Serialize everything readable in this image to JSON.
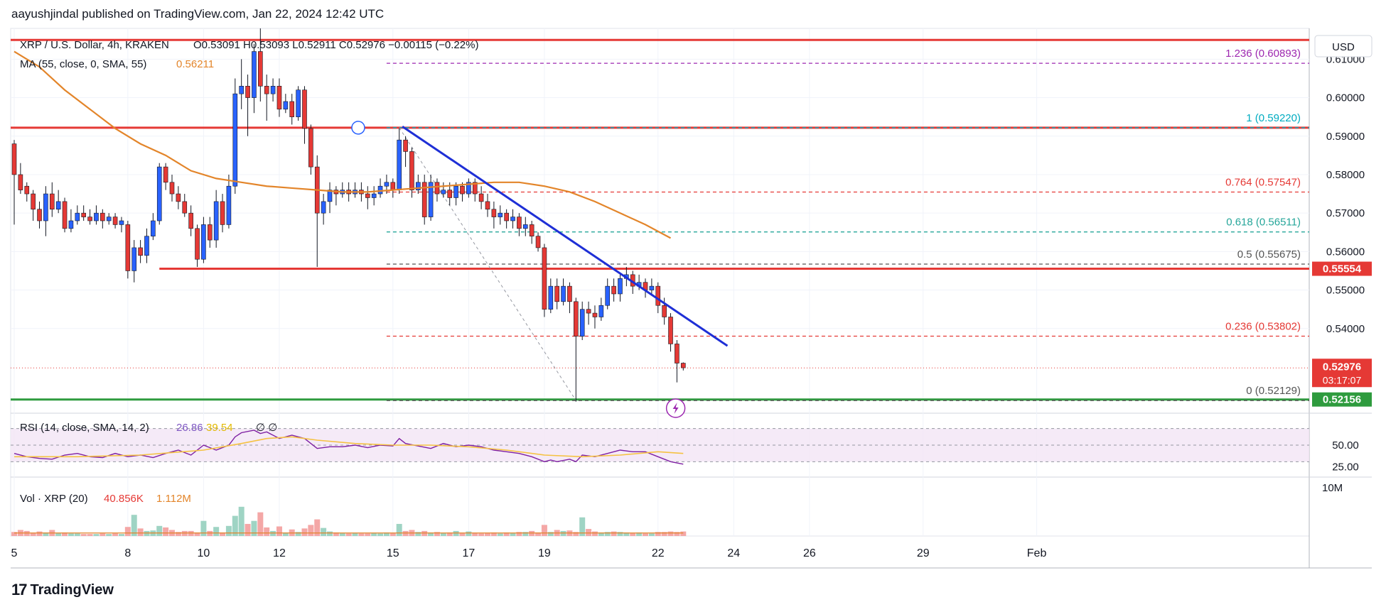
{
  "header": {
    "published_by": "aayushjindal published on TradingView.com, Jan 22, 2024 12:42 UTC"
  },
  "footer": {
    "brand": "TradingView",
    "logo_mark": "17"
  },
  "legend": {
    "symbol": "XRP / U.S. Dollar, 4h, KRAKEN",
    "ohlc": "O0.53091  H0.53093  L0.52911  C0.52976  −0.00115 (−0.22%)",
    "ma_label": "MA (55, close, 0, SMA, 55)",
    "ma_value": "0.56211",
    "rsi_label": "RSI (14, close, SMA, 14, 2)",
    "rsi_value": "26.86",
    "rsi_ma_value": "39.54",
    "rsi_extra": "∅  ∅",
    "vol_label": "Vol · XRP (20)",
    "vol_value": "40.856K",
    "vol_ma_value": "1.112M"
  },
  "chart_data": {
    "type": "candlestick",
    "currency": "USD",
    "price_axis": {
      "ymin": 0.518,
      "ymax": 0.618,
      "ticks": [
        "0.61000",
        "0.60000",
        "0.59000",
        "0.58000",
        "0.57000",
        "0.56000",
        "0.55000",
        "0.54000"
      ]
    },
    "rsi_axis": {
      "ticks": [
        "50.00",
        "25.00"
      ]
    },
    "vol_axis": {
      "ticks": [
        "10M"
      ]
    },
    "x_ticks": [
      {
        "label": "5",
        "x": 0
      },
      {
        "label": "8",
        "x": 18
      },
      {
        "label": "10",
        "x": 30
      },
      {
        "label": "12",
        "x": 42
      },
      {
        "label": "15",
        "x": 60
      },
      {
        "label": "17",
        "x": 72
      },
      {
        "label": "19",
        "x": 84
      },
      {
        "label": "22",
        "x": 102
      },
      {
        "label": "24",
        "x": 114
      },
      {
        "label": "26",
        "x": 126
      },
      {
        "label": "29",
        "x": 144
      },
      {
        "label": "Feb",
        "x": 162
      }
    ],
    "fib_levels": [
      {
        "label": "1.236 (0.60893)",
        "value": 0.60893,
        "color": "#9c27b0"
      },
      {
        "label": "1 (0.59220)",
        "value": 0.5922,
        "color": "#00acc1"
      },
      {
        "label": "0.764 (0.57547)",
        "value": 0.57547,
        "color": "#e53935"
      },
      {
        "label": "0.618 (0.56511)",
        "value": 0.56511,
        "color": "#26a69a"
      },
      {
        "label": "0.5 (0.55675)",
        "value": 0.55675,
        "color": "#555555"
      },
      {
        "label": "0.236 (0.53802)",
        "value": 0.53802,
        "color": "#e53935"
      },
      {
        "label": "0 (0.52129)",
        "value": 0.52129,
        "color": "#555555"
      }
    ],
    "levels": [
      {
        "value": 0.615,
        "color": "#e53935"
      },
      {
        "value": 0.5922,
        "color": "#e53935"
      },
      {
        "value": 0.55554,
        "color": "#e53935",
        "badge": "0.55554"
      },
      {
        "value": 0.52156,
        "color": "#2e9b3e",
        "badge": "0.52156"
      }
    ],
    "last_price": {
      "value": 0.52976,
      "price_label": "0.52976",
      "countdown": "03:17:07"
    },
    "trendline": {
      "x1": 61.5,
      "y1": 0.5925,
      "x2": 113,
      "y2": 0.5355
    },
    "ma55": [
      [
        0,
        0.612
      ],
      [
        4,
        0.608
      ],
      [
        8,
        0.602
      ],
      [
        12,
        0.597
      ],
      [
        16,
        0.592
      ],
      [
        20,
        0.588
      ],
      [
        24,
        0.585
      ],
      [
        28,
        0.581
      ],
      [
        32,
        0.579
      ],
      [
        36,
        0.578
      ],
      [
        40,
        0.577
      ],
      [
        44,
        0.5765
      ],
      [
        48,
        0.576
      ],
      [
        52,
        0.5755
      ],
      [
        56,
        0.5755
      ],
      [
        60,
        0.576
      ],
      [
        64,
        0.5765
      ],
      [
        68,
        0.577
      ],
      [
        72,
        0.5775
      ],
      [
        76,
        0.578
      ],
      [
        80,
        0.578
      ],
      [
        84,
        0.577
      ],
      [
        88,
        0.5755
      ],
      [
        92,
        0.573
      ],
      [
        96,
        0.57
      ],
      [
        100,
        0.567
      ],
      [
        104,
        0.5635
      ]
    ],
    "candles": [
      [
        0,
        0.588,
        0.58,
        0.589,
        0.567
      ],
      [
        1,
        0.58,
        0.576,
        0.583,
        0.575
      ],
      [
        2,
        0.577,
        0.575,
        0.578,
        0.573
      ],
      [
        3,
        0.575,
        0.571,
        0.576,
        0.568
      ],
      [
        4,
        0.571,
        0.568,
        0.573,
        0.566
      ],
      [
        5,
        0.568,
        0.575,
        0.577,
        0.564
      ],
      [
        6,
        0.575,
        0.571,
        0.578,
        0.569
      ],
      [
        7,
        0.571,
        0.573,
        0.576,
        0.57
      ],
      [
        8,
        0.573,
        0.566,
        0.574,
        0.565
      ],
      [
        9,
        0.566,
        0.568,
        0.571,
        0.565
      ],
      [
        10,
        0.568,
        0.57,
        0.572,
        0.567
      ],
      [
        11,
        0.57,
        0.569,
        0.572,
        0.568
      ],
      [
        12,
        0.569,
        0.568,
        0.571,
        0.567
      ],
      [
        13,
        0.568,
        0.57,
        0.572,
        0.567
      ],
      [
        14,
        0.57,
        0.568,
        0.571,
        0.566
      ],
      [
        15,
        0.568,
        0.569,
        0.57,
        0.567
      ],
      [
        16,
        0.569,
        0.567,
        0.57,
        0.566
      ],
      [
        17,
        0.567,
        0.568,
        0.569,
        0.565
      ],
      [
        18,
        0.567,
        0.555,
        0.568,
        0.553
      ],
      [
        19,
        0.555,
        0.561,
        0.563,
        0.552
      ],
      [
        20,
        0.561,
        0.559,
        0.563,
        0.557
      ],
      [
        21,
        0.559,
        0.564,
        0.566,
        0.557
      ],
      [
        22,
        0.564,
        0.568,
        0.57,
        0.563
      ],
      [
        23,
        0.568,
        0.582,
        0.583,
        0.567
      ],
      [
        24,
        0.582,
        0.578,
        0.583,
        0.576
      ],
      [
        25,
        0.578,
        0.575,
        0.58,
        0.573
      ],
      [
        26,
        0.575,
        0.573,
        0.577,
        0.571
      ],
      [
        27,
        0.573,
        0.57,
        0.575,
        0.569
      ],
      [
        28,
        0.57,
        0.566,
        0.572,
        0.564
      ],
      [
        29,
        0.566,
        0.558,
        0.567,
        0.556
      ],
      [
        30,
        0.558,
        0.567,
        0.569,
        0.557
      ],
      [
        31,
        0.567,
        0.563,
        0.569,
        0.561
      ],
      [
        32,
        0.563,
        0.573,
        0.576,
        0.561
      ],
      [
        33,
        0.573,
        0.567,
        0.575,
        0.565
      ],
      [
        34,
        0.567,
        0.577,
        0.58,
        0.566
      ],
      [
        35,
        0.577,
        0.601,
        0.605,
        0.575
      ],
      [
        36,
        0.601,
        0.603,
        0.61,
        0.597
      ],
      [
        37,
        0.603,
        0.6,
        0.606,
        0.59
      ],
      [
        38,
        0.6,
        0.612,
        0.614,
        0.596
      ],
      [
        39,
        0.612,
        0.603,
        0.618,
        0.599
      ],
      [
        40,
        0.603,
        0.601,
        0.606,
        0.594
      ],
      [
        41,
        0.601,
        0.603,
        0.605,
        0.599
      ],
      [
        42,
        0.603,
        0.597,
        0.605,
        0.595
      ],
      [
        43,
        0.597,
        0.599,
        0.601,
        0.596
      ],
      [
        44,
        0.599,
        0.595,
        0.601,
        0.593
      ],
      [
        45,
        0.595,
        0.602,
        0.603,
        0.594
      ],
      [
        46,
        0.602,
        0.592,
        0.603,
        0.588
      ],
      [
        47,
        0.592,
        0.582,
        0.593,
        0.58
      ],
      [
        48,
        0.582,
        0.57,
        0.585,
        0.556
      ],
      [
        49,
        0.57,
        0.573,
        0.575,
        0.567
      ],
      [
        50,
        0.573,
        0.576,
        0.578,
        0.57
      ],
      [
        51,
        0.576,
        0.575,
        0.577,
        0.572
      ],
      [
        52,
        0.575,
        0.576,
        0.578,
        0.574
      ],
      [
        53,
        0.576,
        0.575,
        0.578,
        0.573
      ],
      [
        54,
        0.575,
        0.576,
        0.578,
        0.574
      ],
      [
        55,
        0.576,
        0.575,
        0.578,
        0.573
      ],
      [
        56,
        0.575,
        0.574,
        0.577,
        0.571
      ],
      [
        57,
        0.574,
        0.575,
        0.577,
        0.572
      ],
      [
        58,
        0.575,
        0.577,
        0.579,
        0.574
      ],
      [
        59,
        0.577,
        0.578,
        0.58,
        0.575
      ],
      [
        60,
        0.578,
        0.576,
        0.579,
        0.574
      ],
      [
        61,
        0.576,
        0.589,
        0.592,
        0.575
      ],
      [
        62,
        0.589,
        0.586,
        0.59,
        0.582
      ],
      [
        63,
        0.586,
        0.576,
        0.587,
        0.574
      ],
      [
        64,
        0.576,
        0.578,
        0.58,
        0.575
      ],
      [
        65,
        0.578,
        0.569,
        0.58,
        0.567
      ],
      [
        66,
        0.569,
        0.578,
        0.58,
        0.568
      ],
      [
        67,
        0.578,
        0.575,
        0.579,
        0.573
      ],
      [
        68,
        0.575,
        0.576,
        0.578,
        0.574
      ],
      [
        69,
        0.576,
        0.574,
        0.578,
        0.572
      ],
      [
        70,
        0.574,
        0.577,
        0.578,
        0.572
      ],
      [
        71,
        0.577,
        0.575,
        0.578,
        0.573
      ],
      [
        72,
        0.575,
        0.578,
        0.579,
        0.574
      ],
      [
        73,
        0.578,
        0.575,
        0.579,
        0.573
      ],
      [
        74,
        0.575,
        0.573,
        0.577,
        0.571
      ],
      [
        75,
        0.573,
        0.571,
        0.575,
        0.569
      ],
      [
        76,
        0.571,
        0.569,
        0.573,
        0.566
      ],
      [
        77,
        0.569,
        0.57,
        0.572,
        0.567
      ],
      [
        78,
        0.57,
        0.568,
        0.571,
        0.566
      ],
      [
        79,
        0.568,
        0.569,
        0.571,
        0.566
      ],
      [
        80,
        0.569,
        0.566,
        0.57,
        0.564
      ],
      [
        81,
        0.566,
        0.567,
        0.569,
        0.564
      ],
      [
        82,
        0.567,
        0.564,
        0.568,
        0.562
      ],
      [
        83,
        0.564,
        0.561,
        0.565,
        0.56
      ],
      [
        84,
        0.561,
        0.545,
        0.562,
        0.543
      ],
      [
        85,
        0.545,
        0.551,
        0.553,
        0.544
      ],
      [
        86,
        0.551,
        0.547,
        0.553,
        0.545
      ],
      [
        87,
        0.547,
        0.551,
        0.553,
        0.546
      ],
      [
        88,
        0.551,
        0.547,
        0.552,
        0.544
      ],
      [
        89,
        0.547,
        0.538,
        0.548,
        0.521
      ],
      [
        90,
        0.538,
        0.545,
        0.547,
        0.537
      ],
      [
        91,
        0.545,
        0.544,
        0.547,
        0.541
      ],
      [
        92,
        0.544,
        0.543,
        0.546,
        0.54
      ],
      [
        93,
        0.543,
        0.546,
        0.548,
        0.542
      ],
      [
        94,
        0.546,
        0.551,
        0.553,
        0.545
      ],
      [
        95,
        0.551,
        0.549,
        0.553,
        0.547
      ],
      [
        96,
        0.549,
        0.553,
        0.554,
        0.547
      ],
      [
        97,
        0.553,
        0.554,
        0.556,
        0.551
      ],
      [
        98,
        0.554,
        0.551,
        0.555,
        0.549
      ],
      [
        99,
        0.551,
        0.552,
        0.554,
        0.55
      ],
      [
        100,
        0.552,
        0.55,
        0.553,
        0.548
      ],
      [
        101,
        0.55,
        0.551,
        0.553,
        0.549
      ],
      [
        102,
        0.551,
        0.546,
        0.552,
        0.544
      ],
      [
        103,
        0.546,
        0.543,
        0.548,
        0.541
      ],
      [
        104,
        0.543,
        0.536,
        0.544,
        0.534
      ],
      [
        105,
        0.536,
        0.531,
        0.537,
        0.526
      ],
      [
        106,
        0.531,
        0.5298,
        0.5312,
        0.5291
      ]
    ],
    "rsi": [
      [
        0,
        40
      ],
      [
        2,
        36
      ],
      [
        4,
        34
      ],
      [
        6,
        33
      ],
      [
        8,
        38
      ],
      [
        10,
        40
      ],
      [
        12,
        36
      ],
      [
        14,
        35
      ],
      [
        16,
        40
      ],
      [
        18,
        36
      ],
      [
        20,
        38
      ],
      [
        22,
        35
      ],
      [
        24,
        40
      ],
      [
        26,
        44
      ],
      [
        28,
        38
      ],
      [
        30,
        50
      ],
      [
        32,
        44
      ],
      [
        34,
        50
      ],
      [
        35,
        60
      ],
      [
        36,
        65
      ],
      [
        38,
        68
      ],
      [
        39,
        64
      ],
      [
        40,
        66
      ],
      [
        42,
        58
      ],
      [
        44,
        62
      ],
      [
        46,
        58
      ],
      [
        48,
        46
      ],
      [
        50,
        48
      ],
      [
        52,
        48
      ],
      [
        54,
        50
      ],
      [
        56,
        47
      ],
      [
        58,
        50
      ],
      [
        60,
        49
      ],
      [
        61,
        58
      ],
      [
        62,
        52
      ],
      [
        64,
        49
      ],
      [
        66,
        46
      ],
      [
        68,
        52
      ],
      [
        70,
        48
      ],
      [
        72,
        50
      ],
      [
        74,
        48
      ],
      [
        76,
        44
      ],
      [
        78,
        42
      ],
      [
        80,
        40
      ],
      [
        82,
        36
      ],
      [
        84,
        30
      ],
      [
        85,
        32
      ],
      [
        86,
        30
      ],
      [
        88,
        33
      ],
      [
        89,
        30
      ],
      [
        90,
        38
      ],
      [
        92,
        36
      ],
      [
        94,
        40
      ],
      [
        96,
        44
      ],
      [
        98,
        42
      ],
      [
        100,
        42
      ],
      [
        102,
        36
      ],
      [
        104,
        30
      ],
      [
        106,
        27
      ]
    ],
    "rsi_ma": [
      [
        0,
        36
      ],
      [
        10,
        36
      ],
      [
        20,
        38
      ],
      [
        30,
        44
      ],
      [
        36,
        52
      ],
      [
        40,
        58
      ],
      [
        44,
        60
      ],
      [
        48,
        56
      ],
      [
        54,
        52
      ],
      [
        60,
        50
      ],
      [
        66,
        50
      ],
      [
        72,
        48
      ],
      [
        78,
        44
      ],
      [
        84,
        38
      ],
      [
        90,
        36
      ],
      [
        96,
        38
      ],
      [
        102,
        42
      ],
      [
        106,
        40
      ]
    ],
    "volume": [
      0.08,
      0.12,
      0.1,
      0.06,
      0.09,
      0.07,
      0.12,
      0.06,
      0.07,
      0.05,
      0.05,
      0.04,
      0.04,
      0.04,
      0.05,
      0.04,
      0.05,
      0.04,
      0.18,
      0.42,
      0.15,
      0.1,
      0.11,
      0.2,
      0.17,
      0.12,
      0.08,
      0.1,
      0.1,
      0.07,
      0.3,
      0.1,
      0.18,
      0.07,
      0.2,
      0.4,
      0.58,
      0.24,
      0.3,
      0.47,
      0.17,
      0.1,
      0.19,
      0.07,
      0.13,
      0.08,
      0.15,
      0.22,
      0.33,
      0.16,
      0.09,
      0.07,
      0.06,
      0.05,
      0.06,
      0.05,
      0.05,
      0.06,
      0.05,
      0.07,
      0.06,
      0.24,
      0.1,
      0.12,
      0.08,
      0.1,
      0.07,
      0.08,
      0.06,
      0.07,
      0.1,
      0.06,
      0.09,
      0.06,
      0.05,
      0.06,
      0.07,
      0.05,
      0.07,
      0.06,
      0.08,
      0.08,
      0.1,
      0.07,
      0.22,
      0.08,
      0.12,
      0.1,
      0.11,
      0.08,
      0.37,
      0.14,
      0.09,
      0.07,
      0.08,
      0.09,
      0.08,
      0.07,
      0.06,
      0.07,
      0.05,
      0.05,
      0.08,
      0.08,
      0.09,
      0.08,
      0.09
    ]
  }
}
